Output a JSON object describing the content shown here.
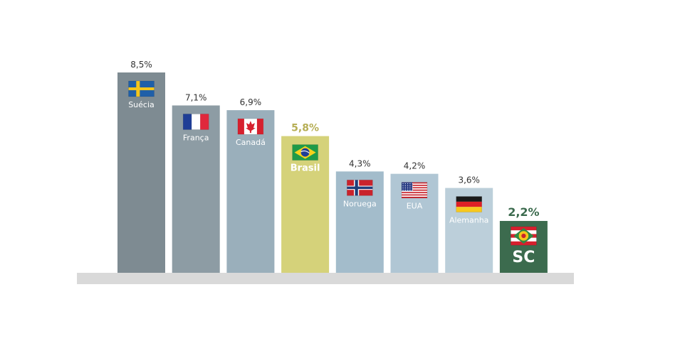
{
  "chart_data": {
    "type": "bar",
    "categories": [
      "Suécia",
      "França",
      "Canadá",
      "Brasil",
      "Noruega",
      "EUA",
      "Alemanha",
      "SC"
    ],
    "values": [
      8.5,
      7.1,
      6.9,
      5.8,
      4.3,
      4.2,
      3.6,
      2.2
    ],
    "value_labels": [
      "8,5%",
      "7,1%",
      "6,9%",
      "5,8%",
      "4,3%",
      "4,2%",
      "3,6%",
      "2,2%"
    ],
    "bar_colors": [
      "#7e8b92",
      "#8d9ca4",
      "#9aafbb",
      "#d5d27a",
      "#a3bccb",
      "#b0c6d4",
      "#bccfda",
      "#3c6b4e"
    ],
    "label_colors": [
      "#333333",
      "#333333",
      "#333333",
      "#b6ae55",
      "#333333",
      "#333333",
      "#333333",
      "#3c6b4e"
    ],
    "flags": [
      "sweden-flag-icon",
      "france-flag-icon",
      "canada-flag-icon",
      "brazil-flag-icon",
      "norway-flag-icon",
      "usa-flag-icon",
      "germany-flag-icon",
      "santa-catarina-flag-icon"
    ],
    "highlighted": [
      "Brasil",
      "SC"
    ],
    "baseline_color": "#d9d9d9",
    "ylim": [
      0,
      8.5
    ],
    "title": "",
    "xlabel": "",
    "ylabel": "",
    "grid": false,
    "legend": "none"
  }
}
